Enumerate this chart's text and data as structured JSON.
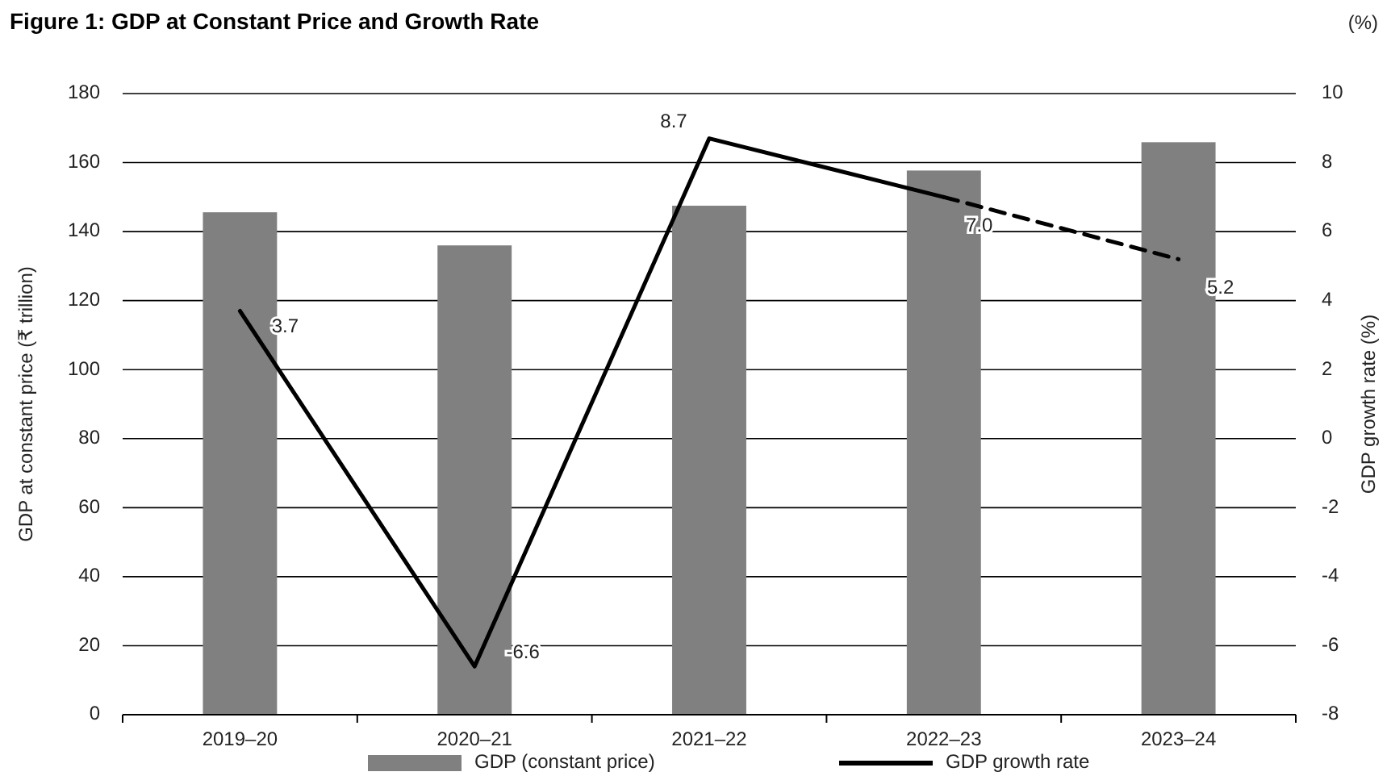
{
  "chart_data": {
    "type": "bar",
    "title": "Figure 1: GDP at Constant Price and Growth Rate",
    "categories": [
      "2019–20",
      "2020–21",
      "2021–22",
      "2022–23",
      "2023–24"
    ],
    "ylabel": "GDP at constant price (₹ trillion)",
    "y2label": "GDP growth rate (%)",
    "ylim": [
      0,
      180
    ],
    "yticks": [
      0,
      20,
      40,
      60,
      80,
      100,
      120,
      140,
      160,
      180
    ],
    "y2lim": [
      -8,
      10
    ],
    "y2ticks": [
      -8,
      -6,
      -4,
      -2,
      0,
      2,
      4,
      6,
      8,
      10
    ],
    "grid": "y",
    "legend": "bottom",
    "annotations": [
      "(%)"
    ],
    "series": [
      {
        "name": "GDP (constant price)",
        "color": "#808080",
        "values": [
          145.6,
          136.0,
          147.5,
          157.7,
          165.9
        ]
      },
      {
        "name": "GDP growth rate",
        "type": "line",
        "axis": "y2",
        "color": "#000000",
        "line_style": "solid",
        "values": [
          3.7,
          -6.6,
          8.7,
          7.0,
          null
        ],
        "value_labels": [
          "3.7",
          "-6.6",
          "8.7",
          "7.0",
          null
        ]
      },
      {
        "type": "line",
        "axis": "y2",
        "color": "#000000",
        "line_style": "dashed",
        "values": [
          null,
          null,
          null,
          7.0,
          5.2
        ],
        "value_labels": [
          null,
          null,
          null,
          null,
          "5.2"
        ]
      }
    ]
  }
}
